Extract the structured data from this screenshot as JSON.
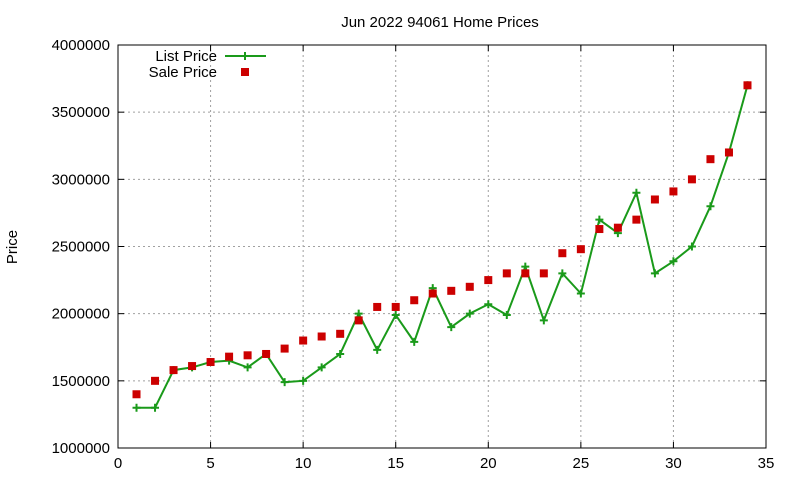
{
  "chart_data": {
    "type": "line",
    "title": "Jun 2022 94061 Home Prices",
    "xlabel": "",
    "ylabel": "Price",
    "xlim": [
      0,
      35
    ],
    "ylim": [
      1000000,
      4000000
    ],
    "x_ticks": [
      "0",
      "5",
      "10",
      "15",
      "20",
      "25",
      "30",
      "35"
    ],
    "y_ticks": [
      "1000000",
      "1500000",
      "2000000",
      "2500000",
      "3000000",
      "3500000",
      "4000000"
    ],
    "grid": true,
    "legend_position": "top-left",
    "series": [
      {
        "name": "List Price",
        "style": "line+cross",
        "color": "#1a9a1a",
        "x": [
          1,
          2,
          3,
          4,
          5,
          6,
          7,
          8,
          9,
          10,
          11,
          12,
          13,
          14,
          15,
          16,
          17,
          18,
          19,
          20,
          21,
          22,
          23,
          24,
          25,
          26,
          27,
          28,
          29,
          30,
          31,
          32,
          33,
          34
        ],
        "values": [
          1300000,
          1300000,
          1580000,
          1600000,
          1640000,
          1650000,
          1600000,
          1700000,
          1490000,
          1500000,
          1600000,
          1700000,
          2000000,
          1730000,
          1990000,
          1790000,
          2190000,
          1900000,
          2000000,
          2070000,
          1990000,
          2350000,
          1950000,
          2300000,
          2150000,
          2700000,
          2600000,
          2900000,
          2300000,
          2390000,
          2500000,
          2800000,
          3200000,
          3700000
        ]
      },
      {
        "name": "Sale Price",
        "style": "square",
        "color": "#cc0000",
        "x": [
          1,
          2,
          3,
          4,
          5,
          6,
          7,
          8,
          9,
          10,
          11,
          12,
          13,
          14,
          15,
          16,
          17,
          18,
          19,
          20,
          21,
          22,
          23,
          24,
          25,
          26,
          27,
          28,
          29,
          30,
          31,
          32,
          33,
          34
        ],
        "values": [
          1400000,
          1500000,
          1580000,
          1610000,
          1640000,
          1680000,
          1690000,
          1700000,
          1740000,
          1800000,
          1830000,
          1850000,
          1950000,
          2050000,
          2050000,
          2100000,
          2150000,
          2170000,
          2200000,
          2250000,
          2300000,
          2300000,
          2300000,
          2450000,
          2480000,
          2630000,
          2640000,
          2700000,
          2850000,
          2910000,
          3000000,
          3150000,
          3200000,
          3700000
        ]
      }
    ]
  }
}
